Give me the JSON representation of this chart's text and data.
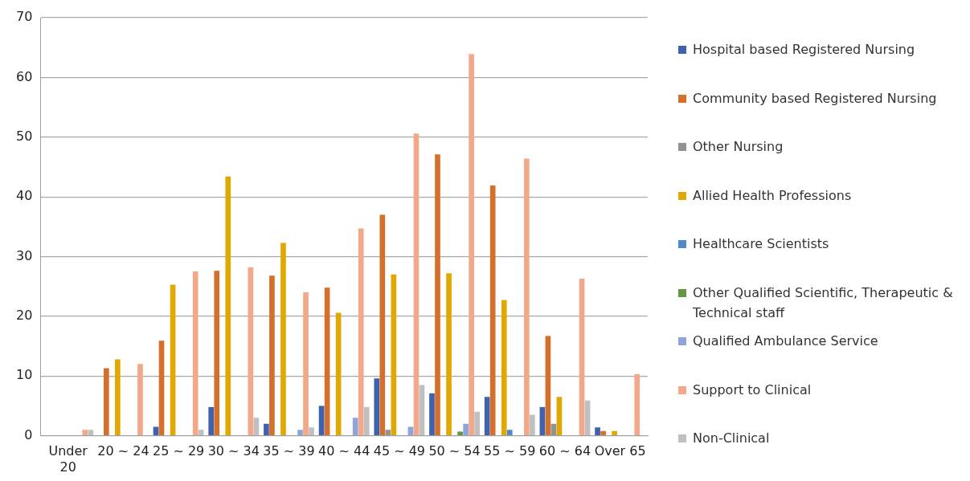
{
  "chart_data": {
    "type": "bar",
    "categories": [
      "Under 20",
      "20 ~ 24",
      "25 ~ 29",
      "30 ~ 34",
      "35 ~ 39",
      "40 ~ 44",
      "45 ~ 49",
      "50 ~ 54",
      "55 ~ 59",
      "60 ~ 64",
      "Over 65"
    ],
    "series": [
      {
        "name": "Hospital based Registered Nursing",
        "color": "#3f62ad",
        "values": [
          null,
          null,
          1.5,
          4.8,
          2.0,
          5.0,
          9.6,
          7.1,
          6.5,
          4.8,
          1.4
        ]
      },
      {
        "name": "Community based Registered Nursing",
        "color": "#d4702b",
        "values": [
          null,
          11.3,
          15.9,
          27.6,
          26.8,
          24.8,
          37.0,
          47.1,
          41.9,
          16.7,
          0.8
        ]
      },
      {
        "name": "Other Nursing",
        "color": "#939393",
        "values": [
          null,
          null,
          null,
          null,
          null,
          null,
          1.0,
          null,
          null,
          2.0,
          null
        ]
      },
      {
        "name": "Allied Health Professions",
        "color": "#e0a800",
        "values": [
          null,
          12.8,
          25.3,
          43.4,
          32.3,
          20.6,
          27.0,
          27.2,
          22.7,
          6.5,
          0.8
        ]
      },
      {
        "name": "Healthcare Scientists",
        "color": "#4e8ac8",
        "values": [
          null,
          null,
          null,
          null,
          null,
          null,
          null,
          null,
          1.0,
          null,
          null
        ]
      },
      {
        "name": "Other Qualified Scientific, Therapeutic & Technical staff",
        "color": "#62993e",
        "values": [
          null,
          null,
          null,
          null,
          null,
          null,
          null,
          0.7,
          null,
          null,
          null
        ]
      },
      {
        "name": "Qualified Ambulance Service",
        "color": "#8ea5d9",
        "values": [
          null,
          null,
          null,
          null,
          1.0,
          3.0,
          1.5,
          2.0,
          null,
          null,
          null
        ]
      },
      {
        "name": "Support to Clinical",
        "color": "#f2a889",
        "values": [
          1.0,
          12.0,
          27.5,
          28.2,
          24.0,
          34.7,
          50.6,
          63.9,
          46.4,
          26.3,
          10.3
        ]
      },
      {
        "name": "Non-Clinical",
        "color": "#c0c0c0",
        "values": [
          1.0,
          null,
          1.0,
          3.0,
          1.4,
          4.8,
          8.5,
          4.0,
          3.5,
          5.9,
          null
        ]
      }
    ],
    "ylim": [
      0,
      70
    ],
    "yticks": [
      0,
      10,
      20,
      30,
      40,
      50,
      60,
      70
    ],
    "grid": "y",
    "legend": "right"
  }
}
